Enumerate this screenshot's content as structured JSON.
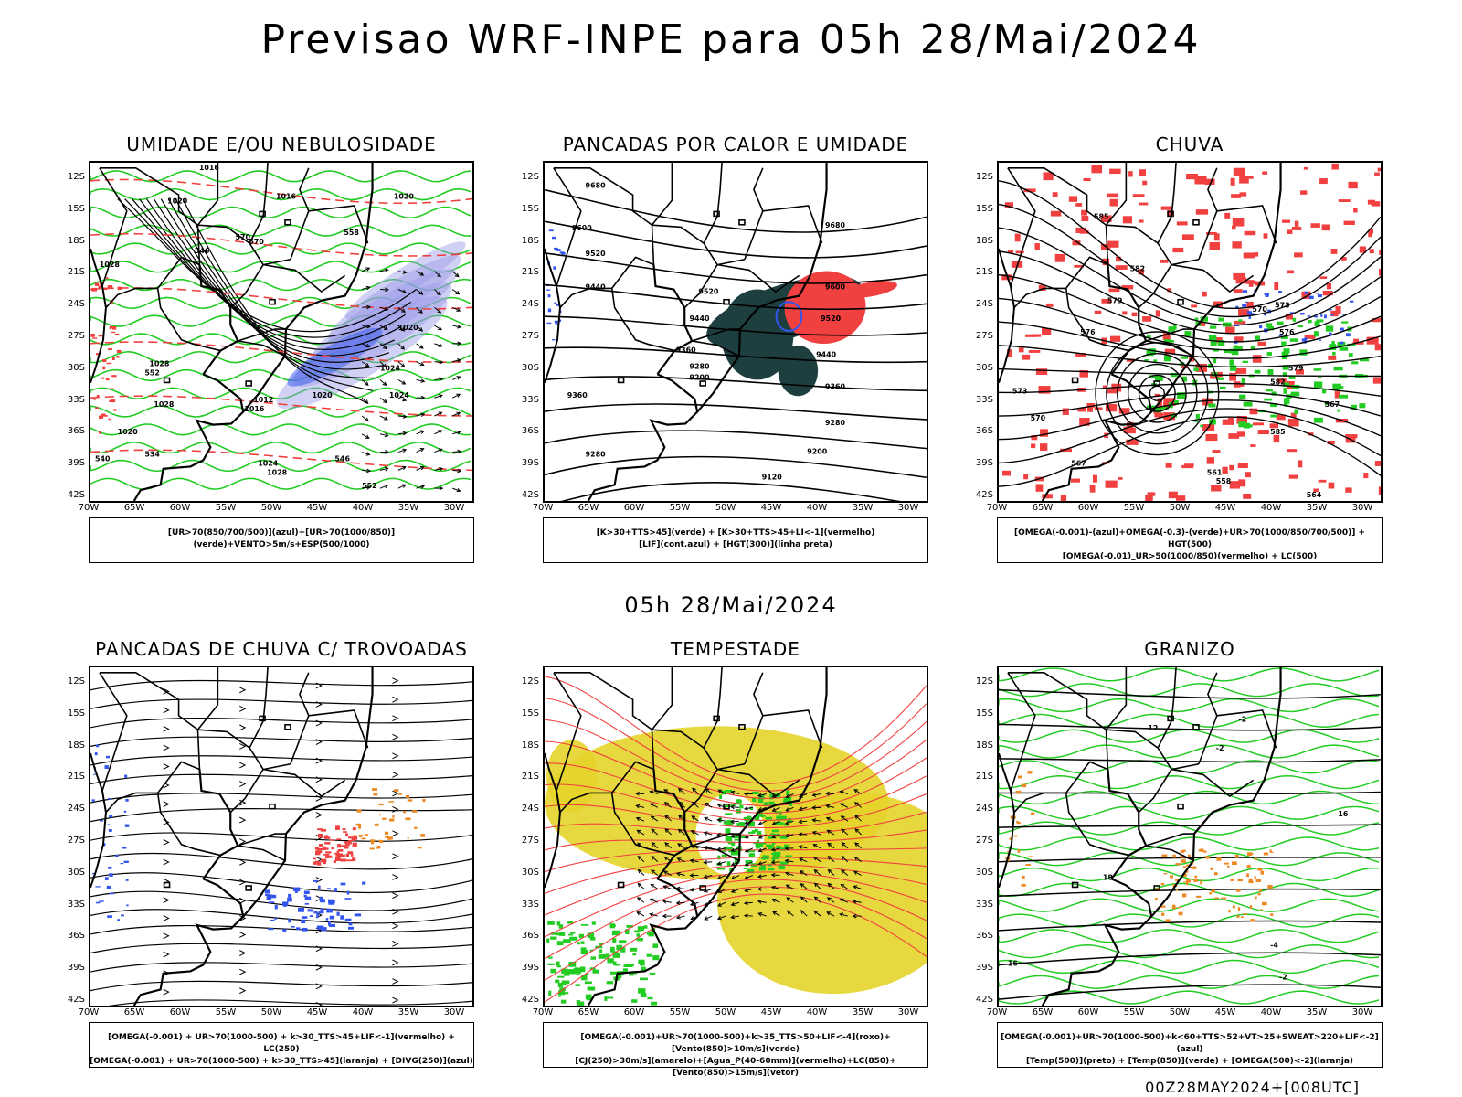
{
  "page": {
    "title": "Previsao WRF-INPE  para 05h 28/Mai/2024",
    "middle_title": "05h 28/Mai/2024",
    "footer": "00Z28MAY2024+[008UTC]"
  },
  "axes": {
    "lat_labels": [
      "12S",
      "15S",
      "18S",
      "21S",
      "24S",
      "27S",
      "30S",
      "33S",
      "36S",
      "39S",
      "42S"
    ],
    "lon_labels": [
      "70W",
      "65W",
      "60W",
      "55W",
      "50W",
      "45W",
      "40W",
      "35W",
      "30W"
    ]
  },
  "colors": {
    "green": "#22cc22",
    "red": "#f04040",
    "blue": "#3355ee",
    "orange": "#ee8822",
    "yellow": "#e6d42a",
    "darkteal": "#1e3f3f",
    "lavender": "#9a9ae8"
  },
  "panels": [
    {
      "title": "UMIDADE E/OU NEBULOSIDADE",
      "legend": [
        "[UR>70(850/700/500)](azul)+[UR>70(1000/850)](verde)+VENTO>5m/s+ESP(500/1000)"
      ]
    },
    {
      "title": "PANCADAS POR CALOR E UMIDADE",
      "legend": [
        "[K>30+TTS>45](verde) + [K>30+TTS>45+LI<-1](vermelho)",
        "[LIF](cont.azul) + [HGT(300)](linha preta)"
      ]
    },
    {
      "title": "CHUVA",
      "legend": [
        "[OMEGA(-0.001)-(azul)+OMEGA(-0.3)-(verde)+UR>70(1000/850/700/500)] + HGT(500)",
        "[OMEGA(-0.01)_UR>50(1000/850)(vermelho) + LC(500)"
      ]
    },
    {
      "title": "PANCADAS DE CHUVA C/ TROVOADAS",
      "legend": [
        "[OMEGA(-0.001) + UR>70(1000-500) + k>30_TTS>45+LIF<-1](vermelho) + LC(250)",
        "[OMEGA(-0.001) + UR>70(1000-500) + k>30_TTS>45](laranja) + [DIVG(250)](azul)"
      ]
    },
    {
      "title": "TEMPESTADE",
      "legend": [
        "[OMEGA(-0.001)+UR>70(1000-500)+k>35_TTS>50+LIF<-4](roxo)+[Vento(850)>10m/s](verde)",
        "[CJ(250)>30m/s](amarelo)+[Agua_P(40-60mm)](vermelho)+LC(850)+[Vento(850)>15m/s](vetor)"
      ]
    },
    {
      "title": "GRANIZO",
      "legend": [
        "[OMEGA(-0.001)+UR>70(1000-500)+k<60+TTS>52+VT>25+SWEAT>220+LIF<-2](azul)",
        "[Temp(500)](preto) + [Temp(850)](verde) + [OMEGA(500)<-2](laranja)"
      ]
    }
  ],
  "contour_labels": {
    "p1": [
      "1016",
      "1016",
      "1020",
      "1020",
      "1028",
      "1024",
      "1028",
      "1024",
      "1012",
      "1016",
      "1020",
      "1028",
      "1020",
      "1024",
      "1028",
      "1020",
      "570",
      "570",
      "558",
      "546",
      "552",
      "540",
      "534",
      "546",
      "552"
    ],
    "p2": [
      "9680",
      "9600",
      "9520",
      "9440",
      "9520",
      "9440",
      "9360",
      "9280",
      "9200",
      "9360",
      "9280",
      "9600",
      "9680",
      "9520",
      "9440",
      "9360",
      "9280",
      "9200",
      "9120"
    ],
    "p3": [
      "585",
      "582",
      "579",
      "576",
      "573",
      "570",
      "567",
      "564",
      "561",
      "558",
      "585",
      "582",
      "579",
      "576",
      "573",
      "570",
      "567"
    ],
    "p6": [
      "-2",
      "-2",
      "-4",
      "12",
      "16",
      "18",
      "16",
      "-2"
    ]
  }
}
